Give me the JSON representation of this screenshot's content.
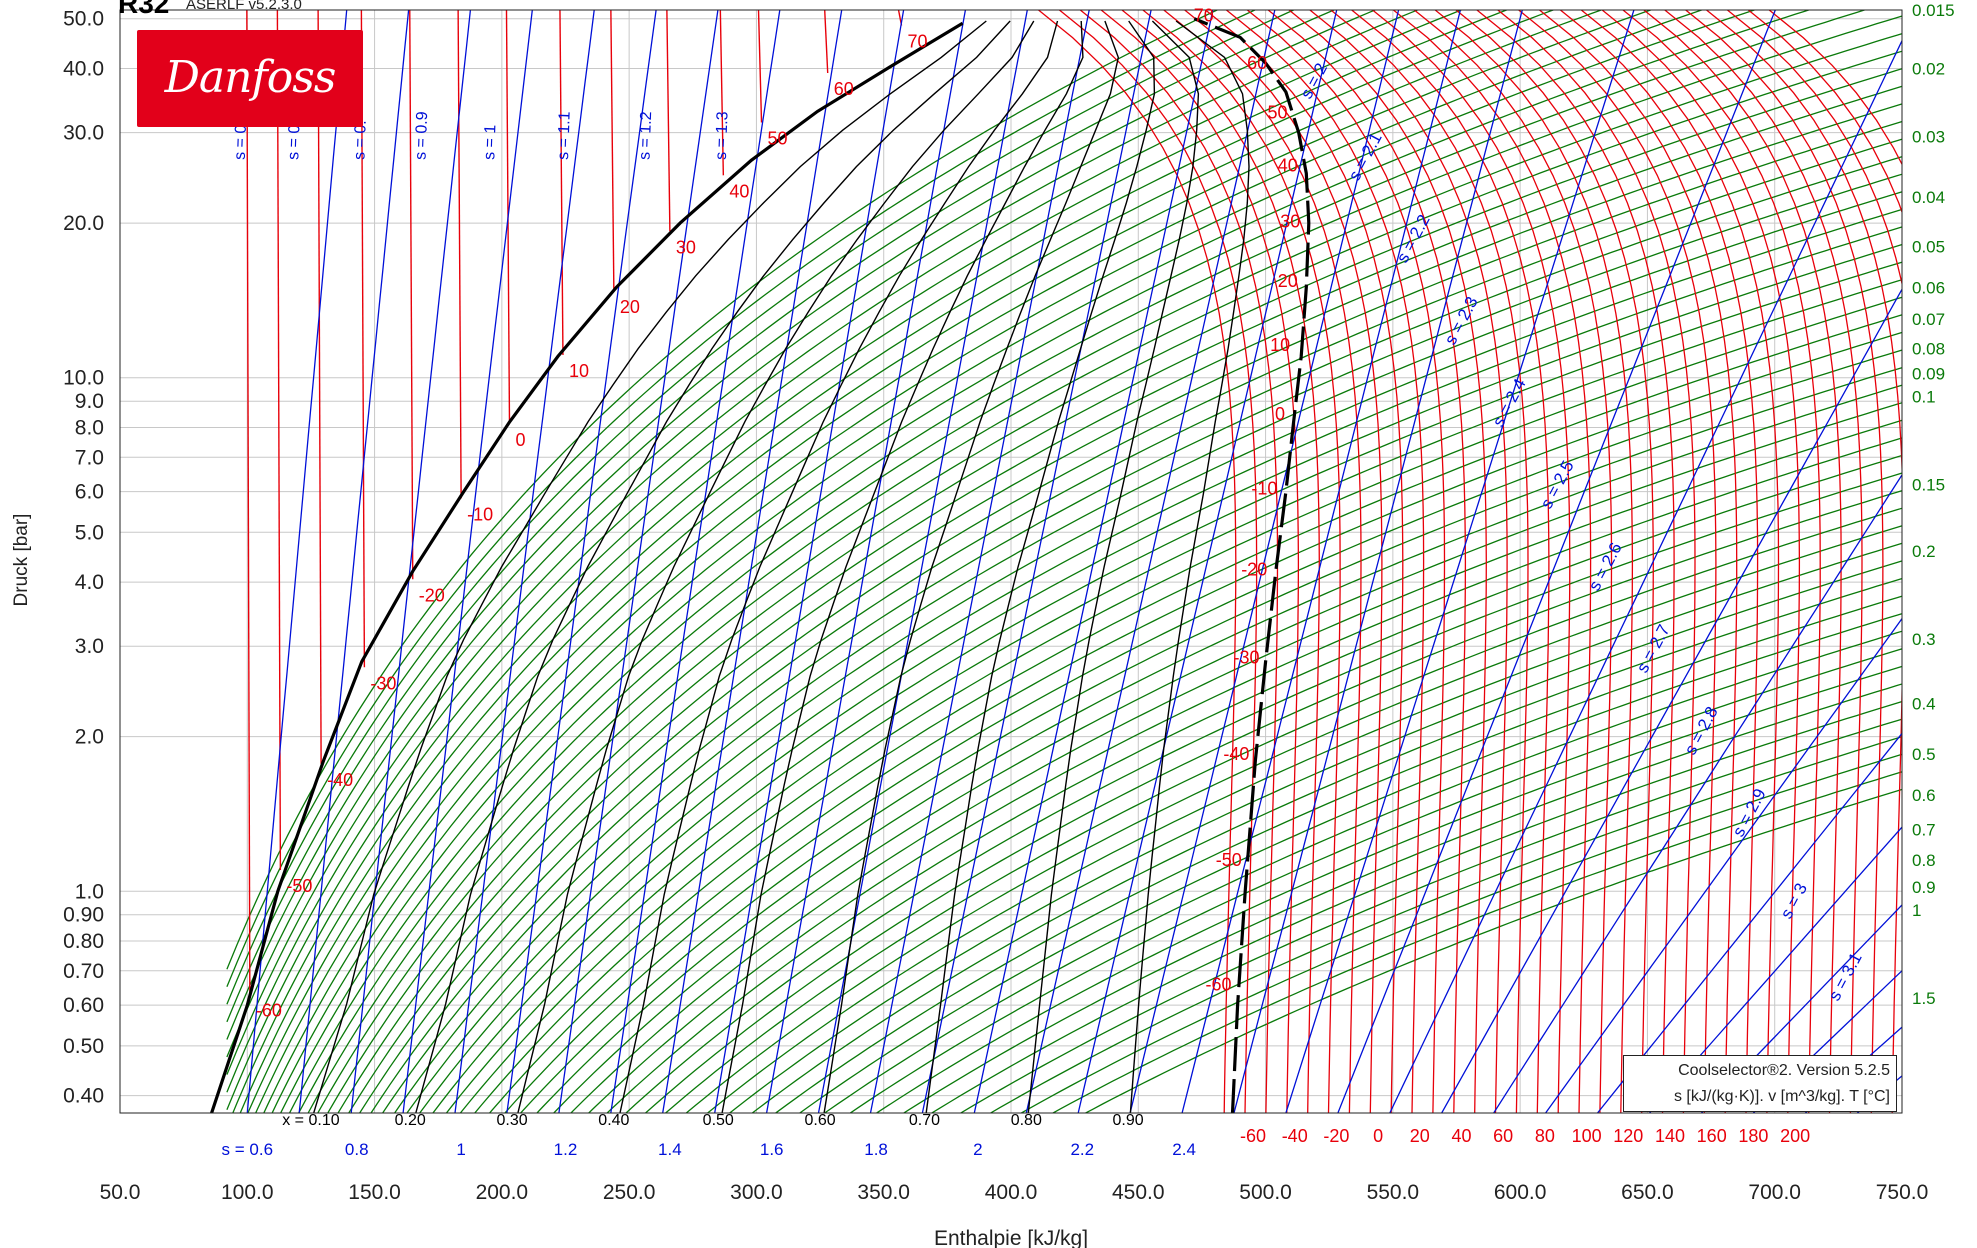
{
  "header": {
    "title": "R32",
    "subtitle": "ASERLF v5.2.3.0"
  },
  "logo": {
    "text": "Danfoss",
    "color": "#e2001a"
  },
  "info": {
    "line1": "Coolselector®2. Version 5.2.5",
    "line2": "s [kJ/(kg·K)]. v [m^3/kg]. T [°C]"
  },
  "colors": {
    "temperature": "#e8000a",
    "entropy": "#0010d8",
    "volume": "#0a7a0a",
    "quality": "#000000",
    "grid": "#c8c8c8"
  },
  "chart_data": {
    "type": "line",
    "title": "R32",
    "xlabel": "Enthalpie [kJ/kg]",
    "ylabel": "Druck [bar]",
    "xlim": [
      50,
      750
    ],
    "ylim": [
      0.37,
      52
    ],
    "yscale": "log",
    "grid": true,
    "x_ticks": [
      "50.0",
      "100.0",
      "150.0",
      "200.0",
      "250.0",
      "300.0",
      "350.0",
      "400.0",
      "450.0",
      "500.0",
      "550.0",
      "600.0",
      "650.0",
      "700.0",
      "750.0"
    ],
    "y_ticks": [
      {
        "v": 50,
        "label": "50.0"
      },
      {
        "v": 40,
        "label": "40.0"
      },
      {
        "v": 30,
        "label": "30.0"
      },
      {
        "v": 20,
        "label": "20.0"
      },
      {
        "v": 10,
        "label": "10.0"
      },
      {
        "v": 9,
        "label": "9.0"
      },
      {
        "v": 8,
        "label": "8.0"
      },
      {
        "v": 7,
        "label": "7.0"
      },
      {
        "v": 6,
        "label": "6.0"
      },
      {
        "v": 5,
        "label": "5.0"
      },
      {
        "v": 4,
        "label": "4.0"
      },
      {
        "v": 3,
        "label": "3.0"
      },
      {
        "v": 2,
        "label": "2.0"
      },
      {
        "v": 1,
        "label": "1.0"
      },
      {
        "v": 0.9,
        "label": "0.90"
      },
      {
        "v": 0.8,
        "label": "0.80"
      },
      {
        "v": 0.7,
        "label": "0.70"
      },
      {
        "v": 0.6,
        "label": "0.60"
      },
      {
        "v": 0.5,
        "label": "0.50"
      },
      {
        "v": 0.4,
        "label": "0.40"
      }
    ],
    "saturation_dome": {
      "liquid": [
        [
          86,
          0.37
        ],
        [
          100,
          0.6
        ],
        [
          112,
          1.0
        ],
        [
          130,
          1.8
        ],
        [
          145,
          2.8
        ],
        [
          165,
          4.2
        ],
        [
          185,
          6
        ],
        [
          203,
          8.2
        ],
        [
          222,
          11
        ],
        [
          245,
          15
        ],
        [
          270,
          20
        ],
        [
          298,
          26.5
        ],
        [
          324,
          33
        ],
        [
          355,
          41
        ],
        [
          381,
          49
        ]
      ],
      "vapor": [
        [
          487,
          0.37
        ],
        [
          489,
          0.6
        ],
        [
          492,
          1.0
        ],
        [
          496,
          1.8
        ],
        [
          500,
          2.8
        ],
        [
          504,
          4.2
        ],
        [
          508,
          6
        ],
        [
          511,
          8.2
        ],
        [
          514,
          11
        ],
        [
          516,
          15
        ],
        [
          517,
          20
        ],
        [
          516,
          25
        ],
        [
          513,
          30
        ],
        [
          508,
          36
        ],
        [
          500,
          41
        ],
        [
          490,
          46
        ],
        [
          472,
          50
        ]
      ]
    },
    "temperature_points": [
      {
        "T": "-60",
        "p": 0.63,
        "h_liq": 101,
        "h_vap": 489
      },
      {
        "T": "-50",
        "p": 1.1,
        "h_liq": 113,
        "h_vap": 493
      },
      {
        "T": "-40",
        "p": 1.77,
        "h_liq": 129,
        "h_vap": 496
      },
      {
        "T": "-30",
        "p": 2.73,
        "h_liq": 146,
        "h_vap": 500
      },
      {
        "T": "-20",
        "p": 4.05,
        "h_liq": 165,
        "h_vap": 503
      },
      {
        "T": "-10",
        "p": 5.82,
        "h_liq": 184,
        "h_vap": 507
      },
      {
        "T": "0",
        "p": 8.13,
        "h_liq": 203,
        "h_vap": 510
      },
      {
        "T": "10",
        "p": 11.07,
        "h_liq": 224,
        "h_vap": 512
      },
      {
        "T": "20",
        "p": 14.75,
        "h_liq": 244,
        "h_vap": 515
      },
      {
        "T": "30",
        "p": 19.28,
        "h_liq": 266,
        "h_vap": 516
      },
      {
        "T": "40",
        "p": 24.78,
        "h_liq": 287,
        "h_vap": 515
      },
      {
        "T": "50",
        "p": 31.4,
        "h_liq": 302,
        "h_vap": 511
      },
      {
        "T": "60",
        "p": 39.2,
        "h_liq": 328,
        "h_vap": 503
      },
      {
        "T": "70",
        "p": 48.5,
        "h_liq": 357,
        "h_vap": 482
      }
    ],
    "superheat_temperature_labels": [
      "-60",
      "-40",
      "-20",
      "0",
      "20",
      "40",
      "60",
      "80",
      "100",
      "120",
      "140",
      "160",
      "180",
      "200"
    ],
    "quality_lines": [
      {
        "x": "x = 0.10",
        "h0": 125
      },
      {
        "x": "0.20",
        "h0": 164
      },
      {
        "x": "0.30",
        "h0": 204
      },
      {
        "x": "0.40",
        "h0": 244
      },
      {
        "x": "0.50",
        "h0": 285
      },
      {
        "x": "0.60",
        "h0": 325
      },
      {
        "x": "0.70",
        "h0": 366
      },
      {
        "x": "0.80",
        "h0": 406
      },
      {
        "x": "0.90",
        "h0": 446
      }
    ],
    "entropy_bottom_labels": [
      {
        "s": "s = 0.6",
        "h": 100
      },
      {
        "s": "0.8",
        "h": 143
      },
      {
        "s": "1",
        "h": 184
      },
      {
        "s": "1.2",
        "h": 225
      },
      {
        "s": "1.4",
        "h": 266
      },
      {
        "s": "1.6",
        "h": 306
      },
      {
        "s": "1.8",
        "h": 347
      },
      {
        "s": "2",
        "h": 387
      },
      {
        "s": "2.2",
        "h": 428
      },
      {
        "s": "2.4",
        "h": 468
      }
    ],
    "entropy_top_labels": [
      {
        "s": "s = 0.",
        "h": 99
      },
      {
        "s": "s = 0.",
        "h": 120
      },
      {
        "s": "s = 0.",
        "h": 146
      },
      {
        "s": "s = 0.9",
        "h": 170
      },
      {
        "s": "s = 1",
        "h": 197
      },
      {
        "s": "s = 1.1",
        "h": 226
      },
      {
        "s": "s = 1.2",
        "h": 258
      },
      {
        "s": "s = 1.3",
        "h": 288
      }
    ],
    "entropy_vapor_labels": [
      "s = 2",
      "s = 2.1",
      "s = 2.2",
      "s = 2.3",
      "s = 2.4",
      "s = 2.5",
      "s = 2.6",
      "s = 2.7",
      "s = 2.8",
      "s = 2.9",
      "s = 3",
      "s = 3.1"
    ],
    "volume_labels": [
      {
        "v": "0.015",
        "p": 52
      },
      {
        "v": "0.02",
        "p": 40
      },
      {
        "v": "0.03",
        "p": 29.5
      },
      {
        "v": "0.04",
        "p": 22.5
      },
      {
        "v": "0.05",
        "p": 18
      },
      {
        "v": "0.06",
        "p": 15
      },
      {
        "v": "0.07",
        "p": 13
      },
      {
        "v": "0.08",
        "p": 11.4
      },
      {
        "v": "0.09",
        "p": 10.2
      },
      {
        "v": "0.1",
        "p": 9.2
      },
      {
        "v": "0.15",
        "p": 6.2
      },
      {
        "v": "0.2",
        "p": 4.6
      },
      {
        "v": "0.3",
        "p": 3.1
      },
      {
        "v": "0.4",
        "p": 2.32
      },
      {
        "v": "0.5",
        "p": 1.85
      },
      {
        "v": "0.6",
        "p": 1.54
      },
      {
        "v": "0.7",
        "p": 1.32
      },
      {
        "v": "0.8",
        "p": 1.15
      },
      {
        "v": "0.9",
        "p": 1.02
      },
      {
        "v": "1",
        "p": 0.92
      },
      {
        "v": "1.5",
        "p": 0.62
      }
    ]
  }
}
